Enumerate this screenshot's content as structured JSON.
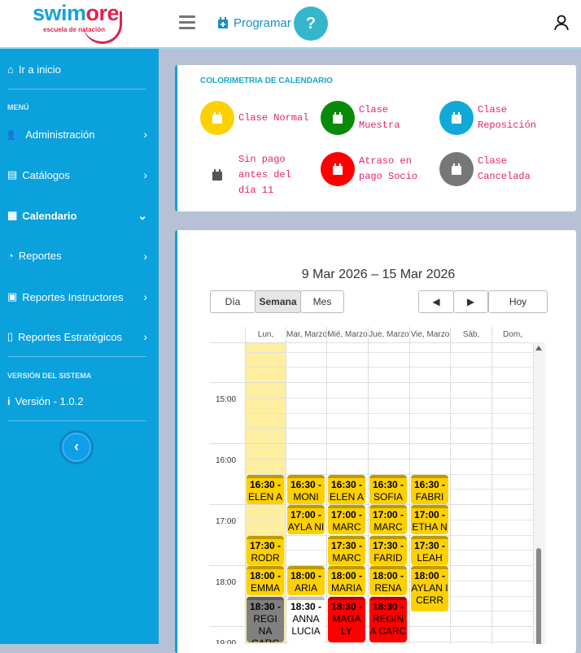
{
  "header": {
    "logo_main_a": "swim",
    "logo_main_b": "ore",
    "logo_sub": "escuela de natación",
    "menu_icon": "hamburger-icon",
    "program_label": "Programar",
    "help_label": "?"
  },
  "sidebar": {
    "home": "Ir a inicio",
    "menu_heading": "MENÚ",
    "items": [
      {
        "label": "Administración",
        "icon": "users-cog-icon"
      },
      {
        "label": "Catálogos",
        "icon": "list-icon"
      },
      {
        "label": "Calendario",
        "icon": "calendar-icon"
      },
      {
        "label": "Reportes",
        "icon": "gauge-icon"
      },
      {
        "label": "Reportes Instructores",
        "icon": "instructor-icon"
      },
      {
        "label": "Reportes Estratégicos",
        "icon": "clipboard-icon"
      }
    ],
    "version_heading": "VERSIÓN DEL SISTEMA",
    "version": "Versión - 1.0.2",
    "collapse": "‹"
  },
  "legend": {
    "title": "COLORIMETRIA DE CALENDARIO",
    "items": [
      {
        "label": "Clase Normal",
        "color": "#fdd000"
      },
      {
        "label": "Clase Muestra",
        "color": "#0a8a0a"
      },
      {
        "label": "Clase Reposición",
        "color": "#10a9d8"
      },
      {
        "label": "Sin pago antes del día 11",
        "color": "#ffffff"
      },
      {
        "label": "Atraso en pago Socio",
        "color": "#ff0000"
      },
      {
        "label": "Clase Cancelada",
        "color": "#777777"
      }
    ]
  },
  "calendar": {
    "range": "9 Mar 2026 – 15 Mar 2026",
    "views": [
      "Día",
      "Semana",
      "Mes"
    ],
    "active_view": "Semana",
    "prev": "◀",
    "next": "▶",
    "today": "Hoy",
    "days": [
      "Lun,",
      "Mar, Marzo",
      "Mié, Marzo",
      "Jue, Marzo",
      "Vie, Marzo",
      "Sáb,",
      "Dom,"
    ],
    "times": [
      "15:00",
      "16:00",
      "17:00",
      "18:00",
      "19:00"
    ],
    "events": [
      {
        "day": 0,
        "start": "16:30",
        "time": "16:30 -",
        "name": "ELEN A",
        "color": "#fdd000"
      },
      {
        "day": 0,
        "start": "17:30",
        "time": "17:30 -",
        "name": "RODR IGO",
        "color": "#fdd000"
      },
      {
        "day": 0,
        "start": "18:00",
        "time": "18:00 -",
        "name": "EMMA GLEZ",
        "color": "#fdd000"
      },
      {
        "day": 0,
        "start": "18:30",
        "time": "18:30 -",
        "name": "REGI NA CARC",
        "color": "#808080"
      },
      {
        "day": 1,
        "start": "16:30",
        "time": "16:30 -",
        "name": "MONI CA",
        "color": "#fdd000"
      },
      {
        "day": 1,
        "start": "17:00",
        "time": "17:00 -",
        "name": "AYLA NI CERR",
        "color": "#fdd000"
      },
      {
        "day": 1,
        "start": "18:00",
        "time": "18:00 -",
        "name": "ARIA LOPE",
        "color": "#fdd000"
      },
      {
        "day": 1,
        "start": "18:30",
        "time": "18:30 -",
        "name": "ANNA LUCIA",
        "color": "#ffffff"
      },
      {
        "day": 2,
        "start": "16:30",
        "time": "16:30 -",
        "name": "ELEN A",
        "color": "#fdd000"
      },
      {
        "day": 2,
        "start": "17:00",
        "time": "17:00 -",
        "name": "MARC ELO",
        "color": "#fdd000"
      },
      {
        "day": 2,
        "start": "17:30",
        "time": "17:30 -",
        "name": "MARC ELO",
        "color": "#fdd000"
      },
      {
        "day": 2,
        "start": "18:00",
        "time": "18:00 -",
        "name": "MARIA NO",
        "color": "#fdd000"
      },
      {
        "day": 2,
        "start": "18:30",
        "time": "18:30 -",
        "name": "MAGA LY",
        "color": "#ff0000"
      },
      {
        "day": 3,
        "start": "16:30",
        "time": "16:30 -",
        "name": "SOFIA AVILE",
        "color": "#fdd000"
      },
      {
        "day": 3,
        "start": "17:00",
        "time": "17:00 -",
        "name": "MARC ELO",
        "color": "#fdd000"
      },
      {
        "day": 3,
        "start": "17:30",
        "time": "17:30 -",
        "name": "FARID ANTO",
        "color": "#fdd000"
      },
      {
        "day": 3,
        "start": "18:00",
        "time": "18:00 -",
        "name": "RENA TA",
        "color": "#fdd000"
      },
      {
        "day": 3,
        "start": "18:30",
        "time": "18:30 -",
        "name": "REGIN A CARC",
        "color": "#ff0000"
      },
      {
        "day": 4,
        "start": "16:30",
        "time": "16:30 -",
        "name": "FABRI CIO",
        "color": "#fdd000"
      },
      {
        "day": 4,
        "start": "17:00",
        "time": "17:00 -",
        "name": "ETHA N",
        "color": "#fdd000"
      },
      {
        "day": 4,
        "start": "17:30",
        "time": "17:30 -",
        "name": "LEAH FRAU",
        "color": "#fdd000"
      },
      {
        "day": 4,
        "start": "18:00",
        "time": "18:00 -",
        "name": "AYLAN I CERR",
        "color": "#fdd000"
      }
    ]
  }
}
